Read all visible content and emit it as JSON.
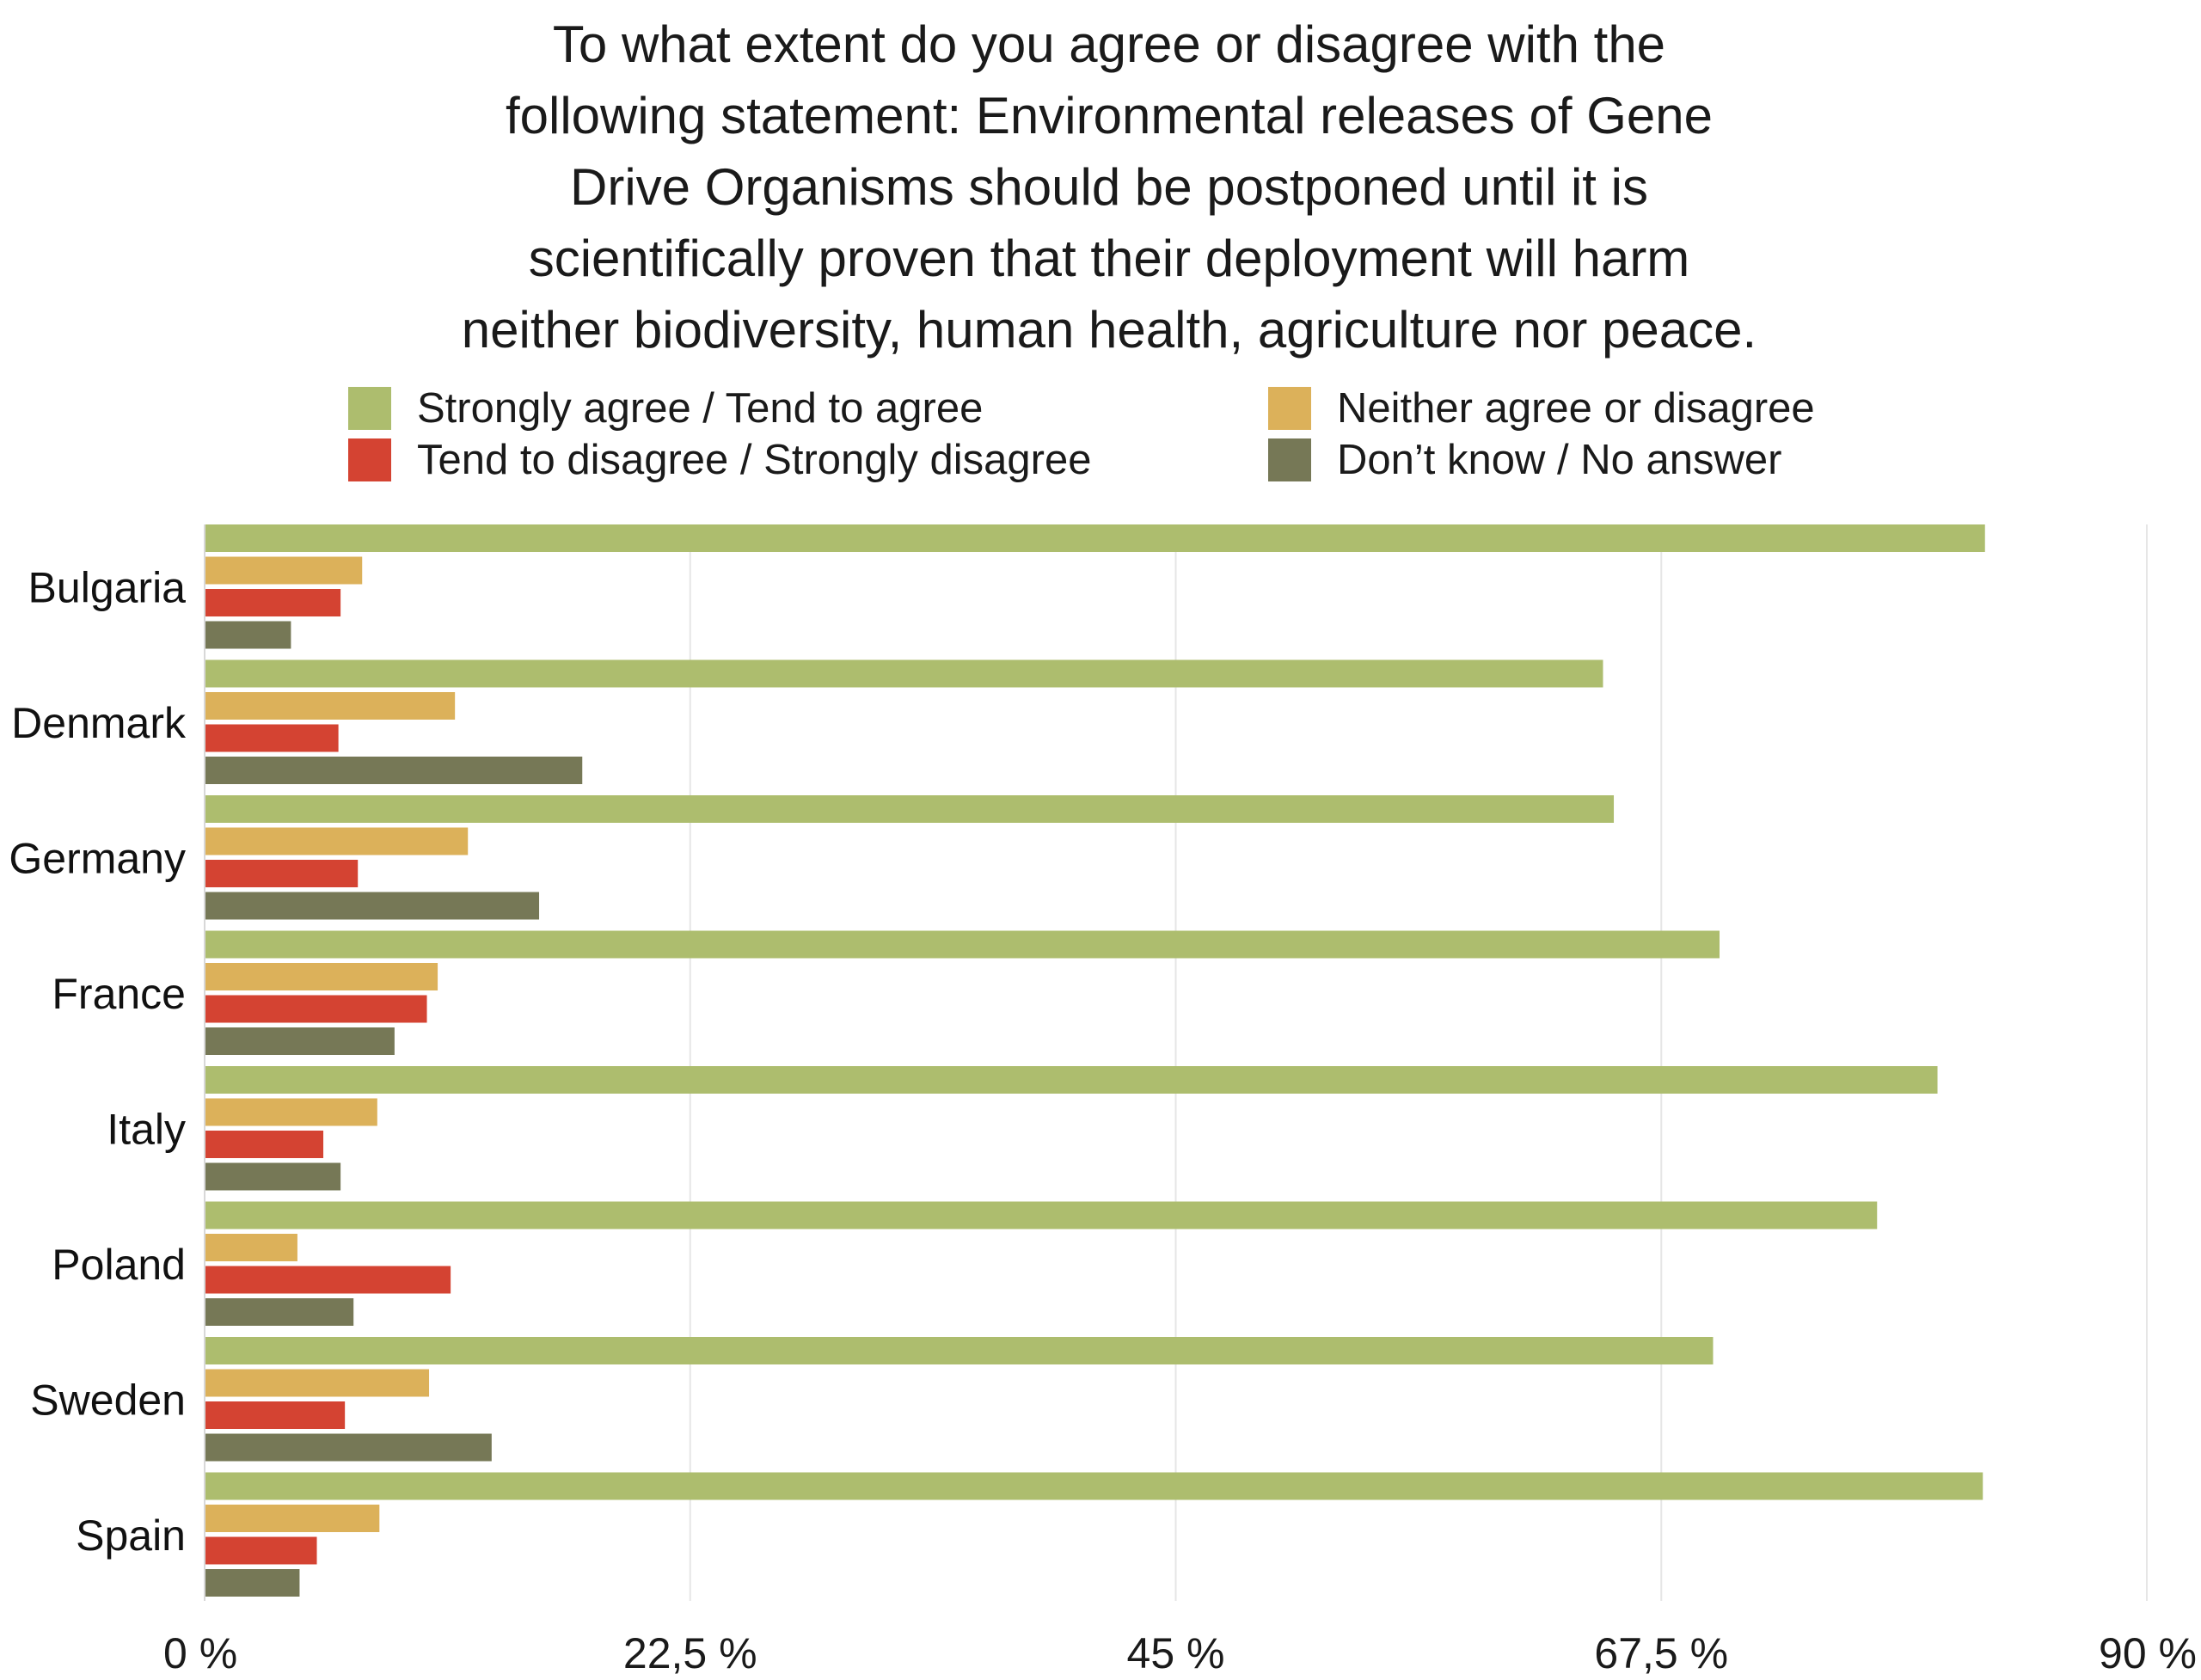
{
  "chart_data": {
    "type": "bar",
    "orientation": "horizontal",
    "title_lines": [
      "To what extent do you agree or disagree with the",
      "following statement: Environmental releases of Gene",
      "Drive Organisms should be postponed until it is",
      "scientifically proven that their deployment will harm",
      "neither biodiversity, human health, agriculture nor peace."
    ],
    "categories": [
      "Bulgaria",
      "Denmark",
      "Germany",
      "France",
      "Italy",
      "Poland",
      "Sweden",
      "Spain"
    ],
    "series": [
      {
        "name": "Strongly agree / Tend to agree",
        "color": "#adbd6e",
        "values": [
          82.5,
          64.8,
          65.3,
          70.2,
          80.3,
          77.5,
          69.9,
          82.4
        ]
      },
      {
        "name": "Neither agree or disagree",
        "color": "#dcb15a",
        "values": [
          7.3,
          11.6,
          12.2,
          10.8,
          8.0,
          4.3,
          10.4,
          8.1
        ]
      },
      {
        "name": "Tend to disagree / Strongly disagree",
        "color": "#d44332",
        "values": [
          6.3,
          6.2,
          7.1,
          10.3,
          5.5,
          11.4,
          6.5,
          5.2
        ]
      },
      {
        "name": "Don’t know / No answer",
        "color": "#767856",
        "values": [
          4.0,
          17.5,
          15.5,
          8.8,
          6.3,
          6.9,
          13.3,
          4.4
        ]
      }
    ],
    "x_ticks": [
      {
        "value": 0,
        "label": "0 %"
      },
      {
        "value": 22.5,
        "label": "22,5 %"
      },
      {
        "value": 45,
        "label": "45 %"
      },
      {
        "value": 67.5,
        "label": "67,5 %"
      },
      {
        "value": 90,
        "label": "90 %"
      }
    ],
    "xlim": [
      0,
      90
    ],
    "xlabel": "",
    "ylabel": "",
    "grid": true,
    "legend_position": "top"
  }
}
